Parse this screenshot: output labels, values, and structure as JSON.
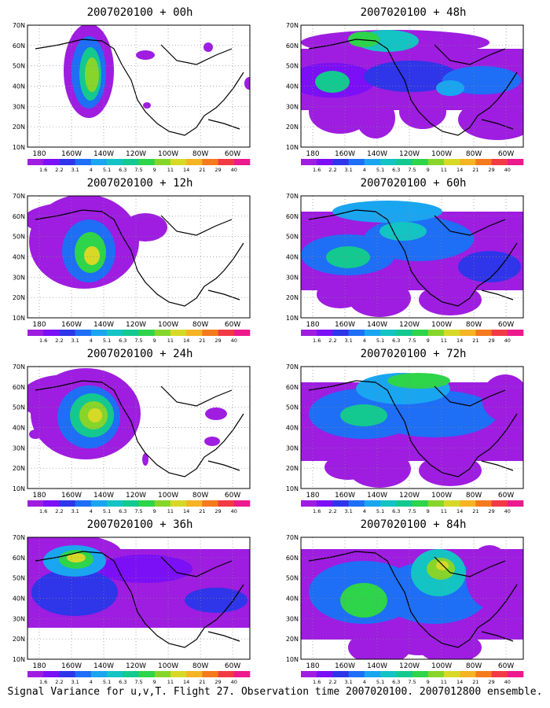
{
  "footer": "Signal Variance for u,v,T. Flight 27. Observation time 2007020100. 2007012800 ensemble.",
  "lat_labels": [
    "70N",
    "60N",
    "50N",
    "40N",
    "30N",
    "20N",
    "10N"
  ],
  "lon_labels": [
    "180",
    "160W",
    "140W",
    "120W",
    "100W",
    "80W",
    "60W"
  ],
  "colorbar": {
    "labels": [
      "1.6",
      "2.2",
      "3.1",
      "4",
      "5.1",
      "6.3",
      "7.5",
      "9",
      "11",
      "14",
      "21",
      "29",
      "40"
    ],
    "colors": [
      "#9e1de0",
      "#7b0ff5",
      "#2f35e8",
      "#1e6ef6",
      "#1aa5f0",
      "#14c3c3",
      "#13c98f",
      "#2ed44a",
      "#87d52b",
      "#d7d927",
      "#f5b423",
      "#f57a1e",
      "#f23a45",
      "#ec1a8c"
    ]
  },
  "panels": [
    {
      "title": "2007020100 + 00h"
    },
    {
      "title": "2007020100 + 48h"
    },
    {
      "title": "2007020100 + 12h"
    },
    {
      "title": "2007020100 + 60h"
    },
    {
      "title": "2007020100 + 24h"
    },
    {
      "title": "2007020100 + 72h"
    },
    {
      "title": "2007020100 + 36h"
    },
    {
      "title": "2007020100 + 84h"
    }
  ]
}
